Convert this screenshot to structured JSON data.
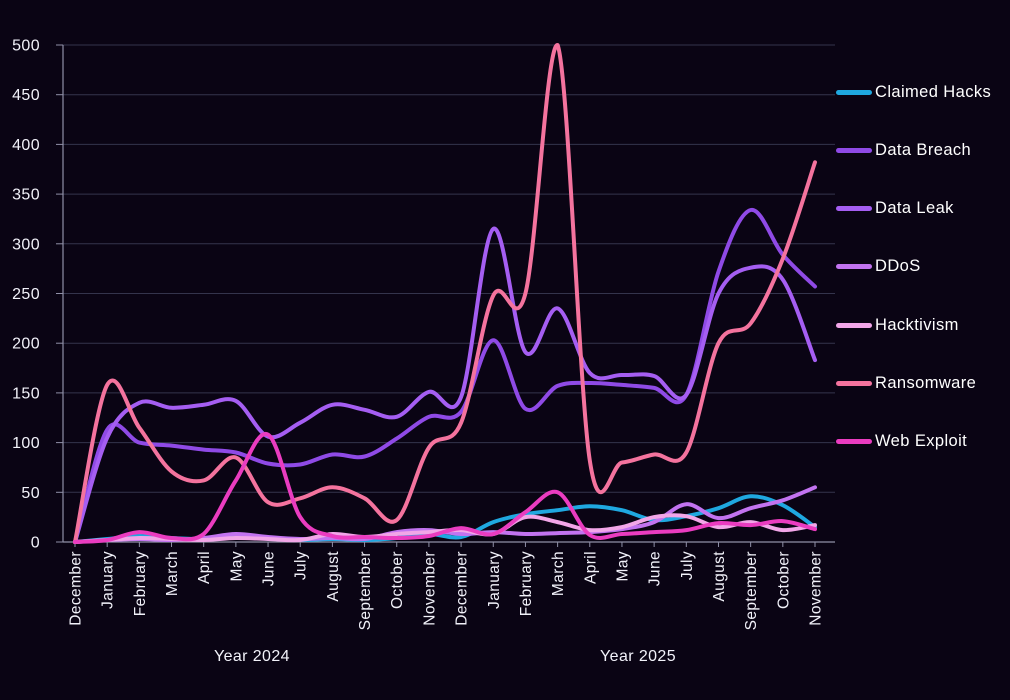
{
  "colors": {
    "background": "#0a0414",
    "grid": "#34344c",
    "axis": "#9090a8",
    "tick_text": "#f2f2fa"
  },
  "chart_data": {
    "type": "line",
    "title": "",
    "xlabel": "",
    "ylabel": "",
    "ylim": [
      0,
      500
    ],
    "y_ticks": [
      0,
      50,
      100,
      150,
      200,
      250,
      300,
      350,
      400,
      450,
      500
    ],
    "grid": true,
    "legend_position": "right",
    "x_categories": [
      "December",
      "January",
      "February",
      "March",
      "April",
      "May",
      "June",
      "July",
      "August",
      "September",
      "October",
      "November",
      "December",
      "January",
      "February",
      "March",
      "April",
      "May",
      "June",
      "July",
      "August",
      "September",
      "October",
      "November"
    ],
    "year_labels": [
      "Year 2024",
      "Year 2025"
    ],
    "series": [
      {
        "name": "Claimed Hacks",
        "color": "#1fa8e0",
        "values": [
          0,
          3,
          6,
          4,
          3,
          6,
          4,
          2,
          3,
          2,
          4,
          8,
          5,
          20,
          28,
          32,
          36,
          32,
          22,
          26,
          34,
          46,
          37,
          15
        ]
      },
      {
        "name": "Data Breach",
        "color": "#8f4ae6",
        "values": [
          0,
          113,
          100,
          97,
          93,
          90,
          79,
          78,
          88,
          86,
          104,
          126,
          131,
          203,
          134,
          157,
          160,
          158,
          155,
          148,
          272,
          334,
          289,
          257
        ]
      },
      {
        "name": "Data Leak",
        "color": "#a55ef2",
        "values": [
          0,
          105,
          140,
          135,
          138,
          142,
          106,
          120,
          138,
          133,
          126,
          151,
          146,
          315,
          191,
          235,
          170,
          168,
          167,
          148,
          250,
          276,
          264,
          183
        ]
      },
      {
        "name": "DDoS",
        "color": "#c273f0",
        "values": [
          0,
          2,
          3,
          2,
          4,
          8,
          5,
          3,
          4,
          3,
          10,
          12,
          8,
          10,
          8,
          9,
          10,
          13,
          20,
          38,
          24,
          34,
          42,
          55
        ]
      },
      {
        "name": "Hacktivism",
        "color": "#f2a6e8",
        "values": [
          0,
          2,
          4,
          3,
          2,
          4,
          3,
          2,
          8,
          5,
          8,
          10,
          12,
          8,
          25,
          20,
          12,
          15,
          25,
          26,
          15,
          20,
          12,
          17
        ]
      },
      {
        "name": "Ransomware",
        "color": "#f4739e",
        "values": [
          0,
          158,
          115,
          71,
          62,
          85,
          40,
          44,
          55,
          44,
          22,
          95,
          120,
          248,
          250,
          500,
          82,
          80,
          88,
          90,
          200,
          220,
          285,
          382
        ]
      },
      {
        "name": "Web Exploit",
        "color": "#ea3cc0",
        "values": [
          0,
          2,
          10,
          4,
          8,
          62,
          108,
          25,
          6,
          5,
          4,
          6,
          14,
          8,
          30,
          50,
          7,
          8,
          10,
          12,
          19,
          17,
          21,
          13
        ]
      }
    ]
  }
}
